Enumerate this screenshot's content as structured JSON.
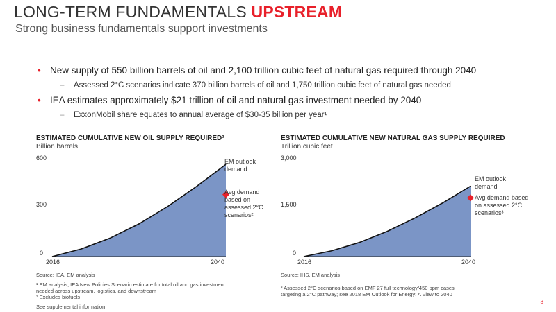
{
  "header": {
    "title_main": "LONG-TERM FUNDAMENTALS ",
    "title_accent": "UPSTREAM",
    "subtitle": "Strong business fundamentals support investments"
  },
  "bullets": [
    {
      "text": "New supply of 550 billion barrels of oil and 2,100 trillion cubic feet of natural gas required through 2040",
      "sub": "Assessed 2°C scenarios indicate 370 billion barrels of oil and 1,750 trillion cubic feet of natural gas needed"
    },
    {
      "text": "IEA estimates approximately $21 trillion of oil and natural gas investment needed by 2040",
      "sub": "ExxonMobil share equates to annual average of $30-35 billion per year¹"
    }
  ],
  "charts": {
    "oil": {
      "title": "ESTIMATED CUMULATIVE NEW OIL SUPPLY REQUIRED²",
      "unit": "Billion barrels",
      "y_ticks": [
        "600",
        "300",
        "0"
      ],
      "x_ticks": [
        "2016",
        "2040"
      ],
      "em_label": "EM outlook demand",
      "avg_label": "Avg demand based on assessed 2°C scenarios²",
      "source": "Source: IEA, EM analysis",
      "notes": [
        "¹ EM analysis; IEA New Policies Scenario estimate for total oil and gas investment",
        "   needed across upstream, logistics, and downstream",
        "² Excludes biofuels"
      ]
    },
    "gas": {
      "title": "ESTIMATED CUMULATIVE NEW NATURAL GAS SUPPLY REQUIRED",
      "unit": "Trillion cubic feet",
      "y_ticks": [
        "3,000",
        "1,500",
        "0"
      ],
      "x_ticks": [
        "2016",
        "2040"
      ],
      "em_label": "EM outlook demand",
      "avg_label": "Avg demand based on assessed 2°C scenarios³",
      "source": "Source: IHS, EM analysis",
      "notes": [
        "³ Assessed 2°C scenarios based on EMF 27 full technology/450 ppm cases",
        "   targeting a 2°C pathway; see 2018 EM Outlook for Energy: A View to 2040"
      ]
    }
  },
  "chart_data": [
    {
      "type": "area",
      "title": "ESTIMATED CUMULATIVE NEW OIL SUPPLY REQUIRED²",
      "ylabel": "Billion barrels",
      "ylim": [
        0,
        600
      ],
      "xlim": [
        2016,
        2040
      ],
      "x": [
        2016,
        2020,
        2024,
        2028,
        2032,
        2036,
        2040
      ],
      "series": [
        {
          "name": "EM outlook demand",
          "values": [
            0,
            45,
            110,
            195,
            300,
            420,
            550
          ]
        }
      ],
      "markers": [
        {
          "name": "Avg demand based on assessed 2°C scenarios²",
          "x": 2040,
          "y": 370
        }
      ],
      "color": "#7b95c6",
      "marker_color": "#e8202a"
    },
    {
      "type": "area",
      "title": "ESTIMATED CUMULATIVE NEW NATURAL GAS SUPPLY REQUIRED",
      "ylabel": "Trillion cubic feet",
      "ylim": [
        0,
        3000
      ],
      "xlim": [
        2016,
        2040
      ],
      "x": [
        2016,
        2020,
        2024,
        2028,
        2032,
        2036,
        2040
      ],
      "series": [
        {
          "name": "EM outlook demand",
          "values": [
            0,
            170,
            420,
            750,
            1150,
            1600,
            2100
          ]
        }
      ],
      "markers": [
        {
          "name": "Avg demand based on assessed 2°C scenarios³",
          "x": 2040,
          "y": 1750
        }
      ],
      "color": "#7b95c6",
      "marker_color": "#e8202a"
    }
  ],
  "footer": {
    "supplemental": "See supplemental information",
    "page": "8"
  }
}
